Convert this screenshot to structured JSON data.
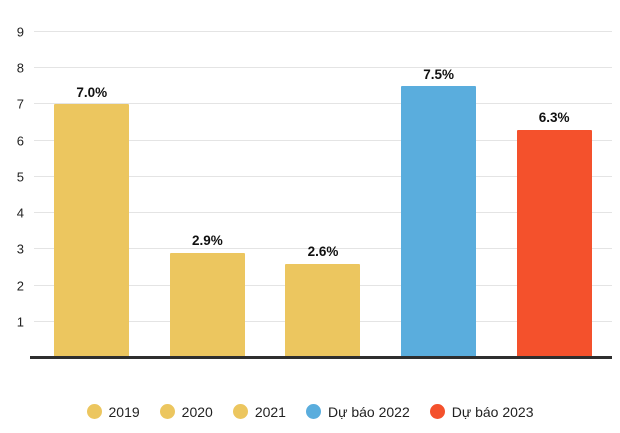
{
  "chart_data": {
    "type": "bar",
    "categories": [
      "2019",
      "2020",
      "2021",
      "Dự báo 2022",
      "Dự báo 2023"
    ],
    "values": [
      7.0,
      2.9,
      2.6,
      7.5,
      6.3
    ],
    "value_labels": [
      "7.0%",
      "2.9%",
      "2.6%",
      "7.5%",
      "6.3%"
    ],
    "bar_colors": [
      "#ecc65f",
      "#ecc65f",
      "#ecc65f",
      "#5aaddd",
      "#f4512c"
    ],
    "title": "",
    "xlabel": "",
    "ylabel": "",
    "ylim": [
      0,
      9
    ],
    "yticks": [
      "1",
      "2",
      "3",
      "4",
      "5",
      "6",
      "7",
      "8",
      "9"
    ],
    "grid": true,
    "legend_position": "bottom",
    "legend": [
      {
        "label": "2019",
        "color": "#ecc65f"
      },
      {
        "label": "2020",
        "color": "#ecc65f"
      },
      {
        "label": "2021",
        "color": "#ecc65f"
      },
      {
        "label": "Dự báo 2022",
        "color": "#5aaddd"
      },
      {
        "label": "Dự báo 2023",
        "color": "#f4512c"
      }
    ],
    "style": {
      "grid_color": "#e4e4e4",
      "axis_color": "#2e2e2e",
      "text_color": "#222222"
    }
  }
}
